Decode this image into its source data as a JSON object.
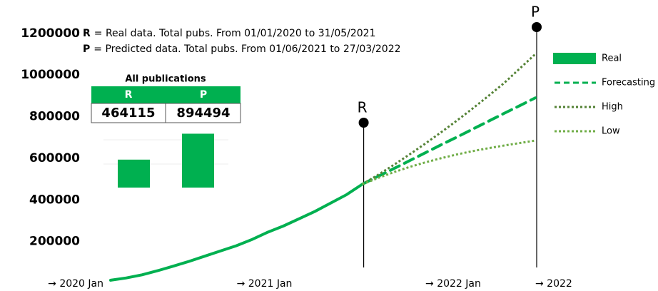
{
  "chart_data": {
    "type": "line",
    "categories": [
      "→ 2020 Jan",
      null,
      null,
      null,
      null,
      null,
      null,
      null,
      null,
      null,
      null,
      null,
      "→ 2021 Jan",
      null,
      null,
      null,
      null,
      null,
      null,
      null,
      null,
      null,
      null,
      null,
      "→ 2022 Jan",
      null,
      null,
      "→ 2022"
    ],
    "series": [
      {
        "name": "Real",
        "color": "#00b050",
        "style": "solid",
        "values": [
          14000,
          25000,
          40000,
          60000,
          82000,
          105000,
          130000,
          155000,
          180000,
          210000,
          245000,
          275000,
          310000,
          345000,
          385000,
          425000,
          475000,
          null,
          null,
          null,
          null,
          null,
          null,
          null,
          null,
          null,
          null,
          null
        ]
      },
      {
        "name": "Forecasting",
        "color": "#00b050",
        "style": "dashed",
        "values": [
          null,
          null,
          null,
          null,
          null,
          null,
          null,
          null,
          null,
          null,
          null,
          null,
          null,
          null,
          null,
          null,
          475000,
          513000,
          550000,
          588000,
          626000,
          664000,
          701000,
          739000,
          777000,
          815000,
          852000,
          890000
        ]
      },
      {
        "name": "High",
        "color": "#548235",
        "style": "dotted",
        "values": [
          null,
          null,
          null,
          null,
          null,
          null,
          null,
          null,
          null,
          null,
          null,
          null,
          null,
          null,
          null,
          null,
          475000,
          520000,
          568000,
          618000,
          670000,
          724000,
          780000,
          838000,
          898000,
          960000,
          1030000,
          1100000
        ]
      },
      {
        "name": "Low",
        "color": "#70ad47",
        "style": "dotted",
        "values": [
          null,
          null,
          null,
          null,
          null,
          null,
          null,
          null,
          null,
          null,
          null,
          null,
          null,
          null,
          null,
          null,
          475000,
          505000,
          533000,
          558000,
          580000,
          600000,
          618000,
          634000,
          648000,
          661000,
          673000,
          685000
        ]
      }
    ],
    "ylim": [
      0,
      1350000
    ],
    "yticks": [
      200000,
      400000,
      600000,
      800000,
      1000000,
      1200000
    ],
    "grid": false,
    "legend": "right",
    "markers": [
      "R",
      "P"
    ],
    "notes": [
      {
        "key": "R",
        "text": "= Real data. Total pubs. From 01/01/2020 to 31/05/2021"
      },
      {
        "key": "P",
        "text": "= Predicted data. Total pubs. From 01/06/2021 to 27/03/2022"
      }
    ],
    "inset": {
      "title": "All publications",
      "headers": [
        "R",
        "P"
      ],
      "values": [
        464115,
        894494
      ],
      "color": "#00b050"
    }
  }
}
